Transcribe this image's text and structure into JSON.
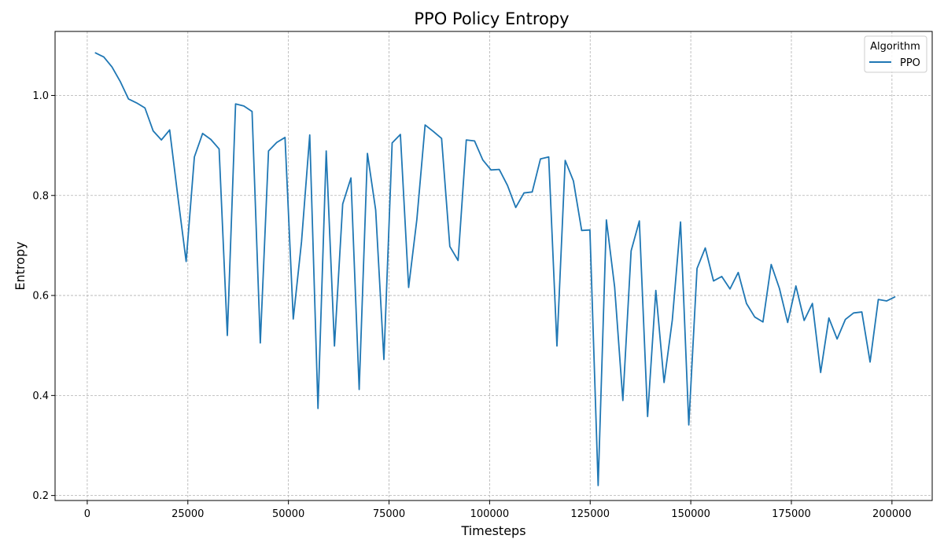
{
  "chart_data": {
    "type": "line",
    "title": "PPO Policy Entropy",
    "xlabel": "Timesteps",
    "ylabel": "Entropy",
    "xlim": [
      -8000,
      210000
    ],
    "ylim": [
      0.19,
      1.128
    ],
    "xticks": [
      0,
      25000,
      50000,
      75000,
      100000,
      125000,
      150000,
      175000,
      200000
    ],
    "xtick_labels": [
      "0",
      "25000",
      "50000",
      "75000",
      "100000",
      "125000",
      "150000",
      "175000",
      "200000"
    ],
    "yticks": [
      0.2,
      0.4,
      0.6,
      0.8,
      1.0
    ],
    "ytick_labels": [
      "0.2",
      "0.4",
      "0.6",
      "0.8",
      "1.0"
    ],
    "grid": true,
    "legend": {
      "title": "Algorithm",
      "placement": "top-right"
    },
    "series": [
      {
        "name": "PPO",
        "color": "#1f77b4",
        "x": [
          2048,
          4096,
          6144,
          8192,
          10240,
          12288,
          14336,
          16384,
          18432,
          20480,
          22528,
          24576,
          26624,
          28672,
          30720,
          32768,
          34816,
          36864,
          38912,
          40960,
          43008,
          45056,
          47104,
          49152,
          51200,
          53248,
          55296,
          57344,
          59392,
          61440,
          63488,
          65536,
          67584,
          69632,
          71680,
          73728,
          75776,
          77824,
          79872,
          81920,
          83968,
          86016,
          88064,
          90112,
          92160,
          94208,
          96256,
          98304,
          100352,
          102400,
          104448,
          106496,
          108544,
          110592,
          112640,
          114688,
          116736,
          118784,
          120832,
          122880,
          124928,
          126976,
          129024,
          131072,
          133120,
          135168,
          137216,
          139264,
          141312,
          143360,
          145408,
          147456,
          149504,
          151552,
          153600,
          155648,
          157696,
          159744,
          161792,
          163840,
          165888,
          167936,
          169984,
          172032,
          174080,
          176128,
          178176,
          180224,
          182272,
          184320,
          186368,
          188416,
          190464,
          192512,
          194560,
          196608,
          198656,
          200704
        ],
        "values": [
          1.085,
          1.077,
          1.057,
          1.028,
          0.993,
          0.985,
          0.975,
          0.929,
          0.911,
          0.931,
          0.797,
          0.668,
          0.877,
          0.924,
          0.912,
          0.893,
          0.52,
          0.983,
          0.979,
          0.968,
          0.505,
          0.889,
          0.906,
          0.916,
          0.553,
          0.707,
          0.921,
          0.374,
          0.889,
          0.499,
          0.783,
          0.835,
          0.412,
          0.884,
          0.771,
          0.472,
          0.905,
          0.922,
          0.616,
          0.752,
          0.941,
          0.928,
          0.914,
          0.698,
          0.67,
          0.911,
          0.909,
          0.871,
          0.851,
          0.852,
          0.82,
          0.776,
          0.805,
          0.807,
          0.873,
          0.877,
          0.499,
          0.87,
          0.829,
          0.73,
          0.731,
          0.22,
          0.751,
          0.617,
          0.39,
          0.689,
          0.749,
          0.358,
          0.61,
          0.426,
          0.551,
          0.747,
          0.341,
          0.654,
          0.695,
          0.629,
          0.638,
          0.613,
          0.646,
          0.584,
          0.557,
          0.547,
          0.662,
          0.614,
          0.546,
          0.619,
          0.55,
          0.584,
          0.446,
          0.555,
          0.513,
          0.552,
          0.565,
          0.567,
          0.467,
          0.592,
          0.589,
          0.597
        ]
      }
    ]
  }
}
